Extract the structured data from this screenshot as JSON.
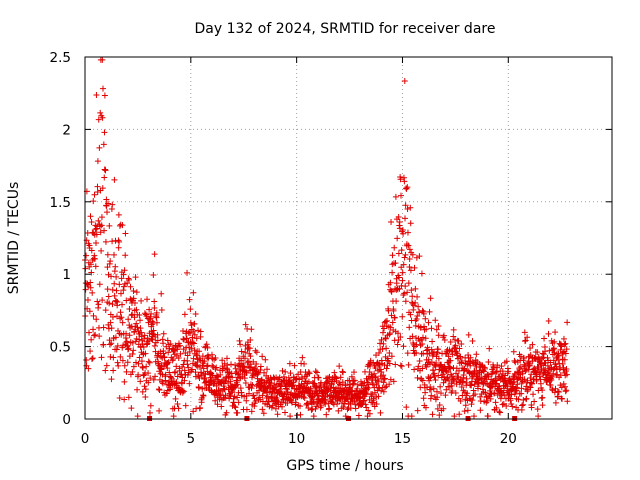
{
  "chart_data": {
    "type": "scatter",
    "title": "Day 132 of 2024, SRMTID for receiver dare",
    "xlabel": "GPS time / hours",
    "ylabel": "SRMTID / TECUs",
    "xlim": [
      0,
      24.9
    ],
    "ylim": [
      0,
      2.5
    ],
    "x_ticks": [
      "0",
      "5",
      "10",
      "15",
      "20"
    ],
    "y_ticks": [
      "0",
      "0.5",
      "1",
      "1.5",
      "2",
      "2.5"
    ],
    "x_tick_values": [
      0,
      5,
      10,
      15,
      20
    ],
    "y_tick_values": [
      0,
      0.5,
      1,
      1.5,
      2,
      2.5
    ],
    "grid": true,
    "marker": "+",
    "series_color": "#e00000",
    "marker_color": "#cc0000",
    "time_range_hours": [
      0,
      22.8
    ],
    "sample_interval_hours": 0.01,
    "trend": [
      [
        0.0,
        0.85
      ],
      [
        0.3,
        1.0
      ],
      [
        0.6,
        1.3
      ],
      [
        0.8,
        1.45
      ],
      [
        1.0,
        1.1
      ],
      [
        1.3,
        0.8
      ],
      [
        1.7,
        0.75
      ],
      [
        2.2,
        0.6
      ],
      [
        2.8,
        0.45
      ],
      [
        3.2,
        0.55
      ],
      [
        3.7,
        0.4
      ],
      [
        4.2,
        0.32
      ],
      [
        4.6,
        0.35
      ],
      [
        5.0,
        0.55
      ],
      [
        5.4,
        0.35
      ],
      [
        6.0,
        0.25
      ],
      [
        7.0,
        0.22
      ],
      [
        7.7,
        0.4
      ],
      [
        8.2,
        0.25
      ],
      [
        9.0,
        0.18
      ],
      [
        10.0,
        0.22
      ],
      [
        11.0,
        0.17
      ],
      [
        12.0,
        0.18
      ],
      [
        13.0,
        0.15
      ],
      [
        13.8,
        0.3
      ],
      [
        14.3,
        0.5
      ],
      [
        14.7,
        0.9
      ],
      [
        15.0,
        1.1
      ],
      [
        15.3,
        1.0
      ],
      [
        15.7,
        0.55
      ],
      [
        16.2,
        0.45
      ],
      [
        16.8,
        0.35
      ],
      [
        17.5,
        0.35
      ],
      [
        18.0,
        0.3
      ],
      [
        18.5,
        0.25
      ],
      [
        19.5,
        0.22
      ],
      [
        20.2,
        0.2
      ],
      [
        20.8,
        0.3
      ],
      [
        21.5,
        0.33
      ],
      [
        22.2,
        0.35
      ],
      [
        22.8,
        0.35
      ]
    ],
    "bottom_markers_x": [
      3.05,
      7.65,
      12.45,
      18.1,
      20.3
    ]
  }
}
